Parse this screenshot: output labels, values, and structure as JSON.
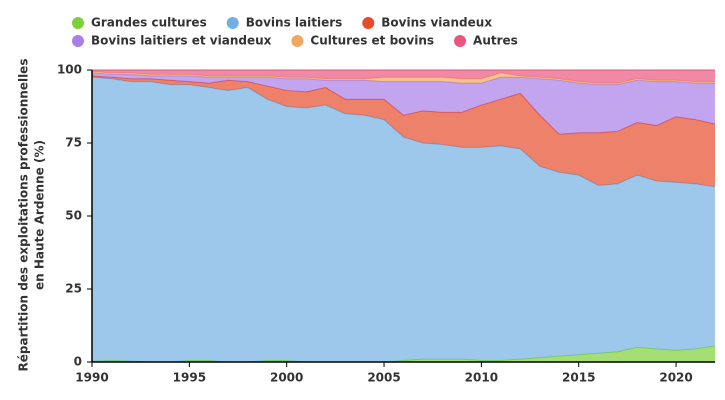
{
  "chart_data": {
    "type": "stacked_area",
    "ylabel": [
      "Répartition des exploitations professionnelles",
      "en Haute Ardenne (%)"
    ],
    "x": [
      1990,
      1991,
      1992,
      1993,
      1994,
      1995,
      1996,
      1997,
      1998,
      1999,
      2000,
      2001,
      2002,
      2003,
      2004,
      2005,
      2006,
      2007,
      2008,
      2009,
      2010,
      2011,
      2012,
      2013,
      2014,
      2015,
      2016,
      2017,
      2018,
      2019,
      2020,
      2021,
      2022
    ],
    "xlim": [
      1990,
      2022
    ],
    "xticks": [
      1990,
      1995,
      2000,
      2005,
      2010,
      2015,
      2020
    ],
    "ylim": [
      0,
      100
    ],
    "yticks": [
      0,
      25,
      50,
      75,
      100
    ],
    "series": [
      {
        "name": "Grandes cultures",
        "color": "#7ed03b",
        "values": [
          0.3,
          0.5,
          0.3,
          0,
          0,
          0.5,
          0.5,
          0,
          0,
          0.5,
          0.5,
          0,
          0,
          0,
          0,
          0,
          0.5,
          1,
          1,
          1,
          0.5,
          0.5,
          1,
          1.5,
          2,
          2.5,
          3,
          3.5,
          5,
          4.5,
          4,
          4.5,
          5.5
        ]
      },
      {
        "name": "Bovins laitiers",
        "color": "#73afe3",
        "values": [
          97.2,
          96.5,
          95.7,
          96,
          95,
          94.5,
          93.5,
          93,
          94,
          89.5,
          87,
          87,
          88,
          85,
          84.5,
          83,
          76.5,
          74,
          73.5,
          72.5,
          73,
          73.5,
          72,
          65.5,
          63,
          61.5,
          57.5,
          57.5,
          59,
          57.5,
          57.5,
          56.5,
          54.5
        ]
      },
      {
        "name": "Bovins viandeux",
        "color": "#e64b2b",
        "values": [
          0.5,
          0.5,
          1,
          1,
          1.5,
          1,
          1.5,
          3.5,
          2,
          4.5,
          5.5,
          5.5,
          6,
          5,
          5.5,
          7,
          7.5,
          11,
          11,
          12,
          14.5,
          16,
          19,
          17.5,
          13,
          14.5,
          18,
          18,
          18,
          19,
          22.5,
          22,
          21.5
        ]
      },
      {
        "name": "Bovins laitiers et viandeux",
        "color": "#a97ee8",
        "values": [
          1,
          1,
          1.5,
          1,
          1.5,
          2,
          2,
          1,
          1.5,
          3,
          4,
          4.5,
          2.5,
          6.5,
          6.5,
          6,
          11.5,
          10,
          10.5,
          10,
          7.5,
          7.5,
          5.5,
          12.5,
          18.5,
          17,
          16.5,
          16,
          14.5,
          15,
          12,
          12.5,
          14
        ]
      },
      {
        "name": "Cultures et bovins",
        "color": "#f0a860",
        "values": [
          0.5,
          0.5,
          0.5,
          0.5,
          0.5,
          0.5,
          0.5,
          0.5,
          0.5,
          0.5,
          0.5,
          0.5,
          0.5,
          0.5,
          0.5,
          1.5,
          1.5,
          1.5,
          1.5,
          1.5,
          1.5,
          1.5,
          0.5,
          0.5,
          0.5,
          0.5,
          0.5,
          0.5,
          0.5,
          0.5,
          0.5,
          0.5,
          0.5
        ]
      },
      {
        "name": "Autres",
        "color": "#e8577f",
        "values": [
          0.5,
          1,
          1,
          1.5,
          1.5,
          1.5,
          2,
          2,
          2,
          2,
          2.5,
          2.5,
          3,
          3,
          3,
          2.5,
          2.5,
          2.5,
          2.5,
          3,
          3,
          1,
          2,
          2.5,
          3,
          4,
          4.5,
          4.5,
          3,
          3.5,
          3.5,
          4,
          4
        ]
      }
    ]
  }
}
